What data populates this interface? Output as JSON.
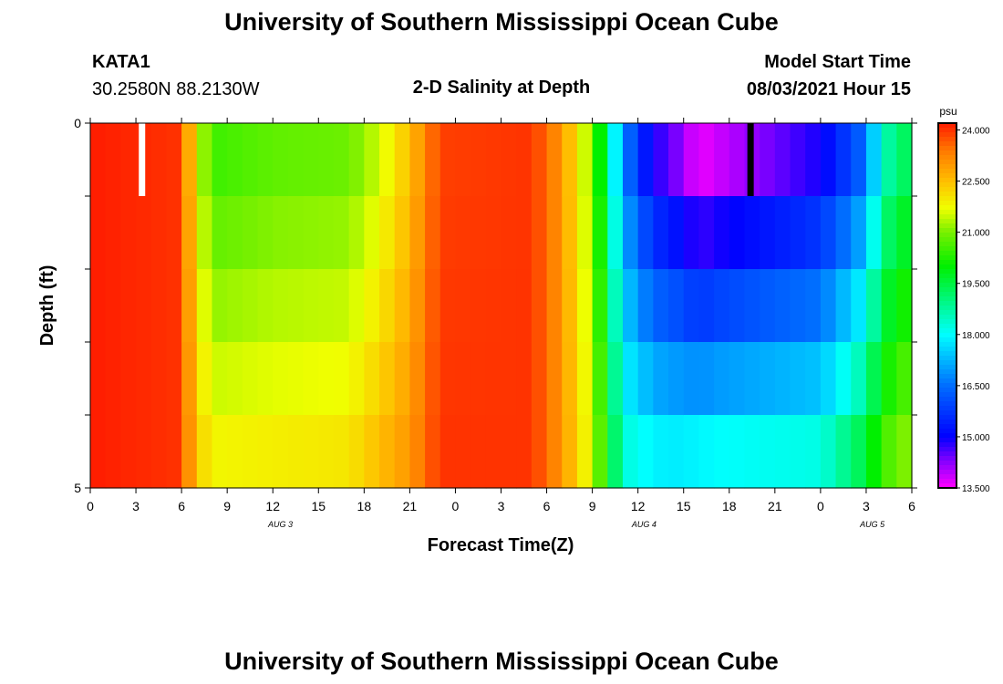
{
  "titles": {
    "top": "University of Southern Mississippi Ocean Cube",
    "bottom": "University of Southern Mississippi Ocean Cube"
  },
  "header": {
    "station": "KATA1",
    "coords": "30.2580N  88.2130W",
    "plot_title": "2-D Salinity at Depth",
    "model_label": "Model Start Time",
    "model_time": "08/03/2021 Hour 15"
  },
  "chart_data": {
    "type": "heatmap",
    "title": "2-D Salinity at Depth",
    "xlabel": "Forecast Time(Z)",
    "ylabel": "Depth (ft)",
    "x_ticks": [
      "0",
      "3",
      "6",
      "9",
      "12",
      "15",
      "18",
      "21",
      "0",
      "3",
      "6",
      "9",
      "12",
      "15",
      "18",
      "21",
      "0",
      "3",
      "6"
    ],
    "y_ticks": [
      "0",
      "5"
    ],
    "ylim": [
      0,
      5
    ],
    "date_labels": [
      {
        "label": "AUG 3",
        "at_hour": 15
      },
      {
        "label": "AUG 4",
        "at_hour": 39
      },
      {
        "label": "AUG 5",
        "at_hour": 63
      }
    ],
    "colorbar": {
      "unit": "psu",
      "ticks": [
        "24.000",
        "22.500",
        "21.000",
        "19.500",
        "18.000",
        "16.500",
        "15.000",
        "13.500"
      ],
      "min": 13.5,
      "max": 24.2
    },
    "hours": 54,
    "depth_layers": 5,
    "salinity_profile": {
      "hours": [
        0,
        6,
        6.8,
        8,
        12,
        17,
        19,
        21,
        23,
        29,
        31,
        33,
        34,
        35,
        37,
        38,
        40,
        41,
        48,
        51,
        52,
        54
      ],
      "surface": [
        24.2,
        24.0,
        22.0,
        20.5,
        20.8,
        20.9,
        21.5,
        22.5,
        23.9,
        24.0,
        23.0,
        21.0,
        19.0,
        16.8,
        14.8,
        14.6,
        13.6,
        13.8,
        14.9,
        16.5,
        18.5,
        19.5
      ],
      "bottom": [
        24.2,
        24.0,
        22.5,
        21.8,
        21.9,
        22.0,
        22.5,
        23.0,
        24.0,
        24.0,
        23.0,
        21.5,
        20.0,
        18.3,
        17.9,
        17.8,
        17.9,
        18.0,
        18.2,
        19.5,
        20.5,
        21.2
      ]
    },
    "markers": [
      {
        "at_hour": 3.4,
        "color": "#ffffff"
      },
      {
        "at_hour": 43.4,
        "color": "#000000"
      }
    ]
  }
}
